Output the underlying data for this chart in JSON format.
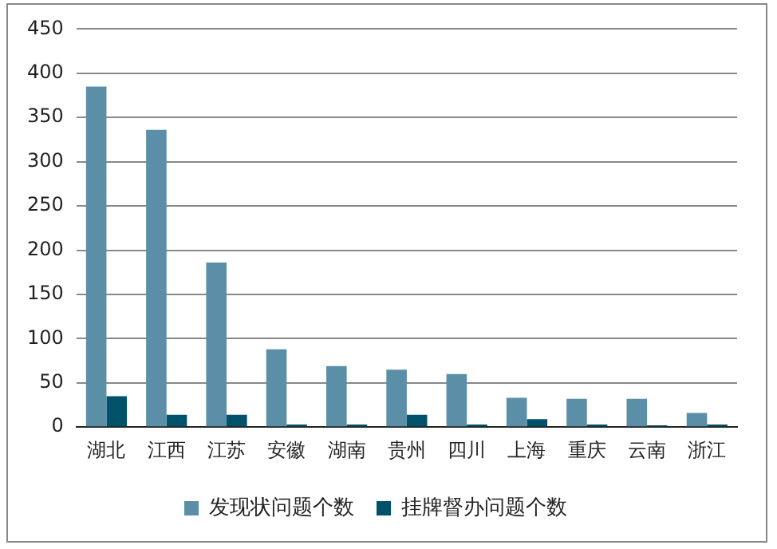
{
  "chart_data": {
    "type": "bar",
    "categories": [
      "湖北",
      "江西",
      "江苏",
      "安徽",
      "湖南",
      "贵州",
      "四川",
      "上海",
      "重庆",
      "云南",
      "浙江"
    ],
    "series": [
      {
        "name": "发现状问题个数",
        "color": "#5b8fa8",
        "values": [
          385,
          336,
          186,
          88,
          69,
          65,
          60,
          33,
          32,
          32,
          16
        ]
      },
      {
        "name": "挂牌督办问题个数",
        "color": "#00526b",
        "values": [
          35,
          14,
          14,
          3,
          3,
          14,
          3,
          9,
          3,
          2,
          3
        ]
      }
    ],
    "ylim": [
      0,
      450
    ],
    "yticks": [
      0,
      50,
      100,
      150,
      200,
      250,
      300,
      350,
      400,
      450
    ],
    "grid": "y",
    "legend": "bottom"
  }
}
